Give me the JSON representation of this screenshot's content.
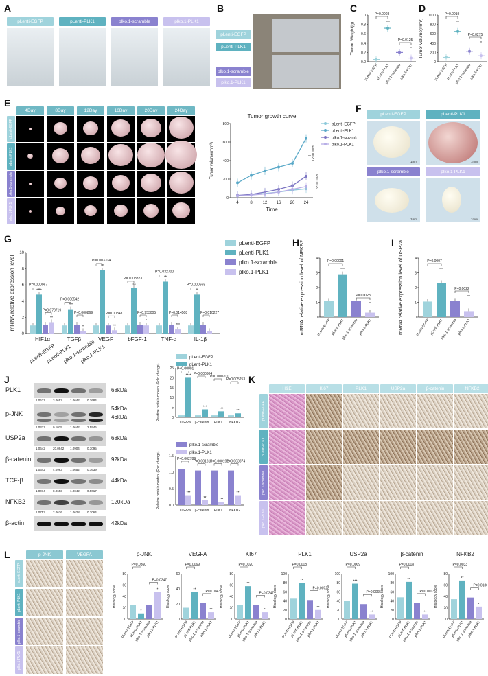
{
  "panels": {
    "A": "A",
    "B": "B",
    "C": "C",
    "D": "D",
    "E": "E",
    "F": "F",
    "G": "G",
    "H": "H",
    "I": "I",
    "J": "J",
    "K": "K",
    "L": "L"
  },
  "groups": {
    "egfp": "pLenti-EGFP",
    "plk1": "pLenti-PLK1",
    "scr": "plko.1-scramble",
    "plko": "plko.1-PLK1"
  },
  "e_days": [
    "4Day",
    "8Day",
    "12Day",
    "16Day",
    "20Day",
    "24Day"
  ],
  "f_scalebar": "1mm",
  "k_headers": [
    "H&E",
    "Ki67",
    "PLK1",
    "USP2a",
    "β-catenin",
    "NFKB2"
  ],
  "l_headers": [
    "p-JNK",
    "VEGFA"
  ],
  "j_proteins": [
    {
      "name": "PLK1",
      "kda": "68kDa",
      "quant": [
        "1.0637",
        "3.0652",
        "1.0642",
        "0.1684"
      ]
    },
    {
      "name": "p-JNK",
      "kda": "54kDa|46kDa",
      "quant": [
        "1.0317",
        "0.1025",
        "1.0642",
        "2.5946"
      ]
    },
    {
      "name": "USP2a",
      "kda": "68kDa",
      "quant": [
        "1.0642",
        "20.0942",
        "1.0904",
        "0.3095"
      ]
    },
    {
      "name": "β-catenin",
      "kda": "92kDa",
      "quant": [
        "1.0642",
        "4.0963",
        "1.0652",
        "0.1639"
      ]
    },
    {
      "name": "TCF-β",
      "kda": "44kDa",
      "quant": [
        "1.0074",
        "8.0653",
        "1.0042",
        "0.5017"
      ]
    },
    {
      "name": "NFKB2",
      "kda": "120kDa",
      "quant": [
        "1.0752",
        "2.0616",
        "1.0628",
        "0.3064"
      ]
    },
    {
      "name": "β-actin",
      "kda": "42kDa",
      "quant": []
    }
  ],
  "colors": {
    "egfp": "#9fd3dc",
    "plk1": "#5fb2c0",
    "scr": "#8a82cf",
    "plko": "#c8c1ee",
    "line_egfp": "#8cc9da",
    "line_plk1": "#5aa9c8",
    "line_scr": "#7b74c2",
    "line_plko": "#b7aee6"
  },
  "chart_data": [
    {
      "panel": "C",
      "type": "scatter",
      "ylabel": "Tumor Weight(g)",
      "ylim": [
        0,
        1.0
      ],
      "yticks": [
        "0.0",
        "0.2",
        "0.4",
        "0.6",
        "0.8",
        "1.0"
      ],
      "categories": [
        "pLenti-EGFP",
        "pLenti-PLK1",
        "plko.1-scramble",
        "plko.1-PLK1"
      ],
      "values": [
        0.05,
        0.72,
        0.2,
        0.08
      ],
      "annotations": [
        "P=0.0003",
        "P=0.0125",
        "***",
        "*"
      ]
    },
    {
      "panel": "D",
      "type": "scatter",
      "ylabel": "Tumor volume(mm³)",
      "ylim": [
        0,
        1000
      ],
      "yticks": [
        "0",
        "200",
        "400",
        "600",
        "800",
        "1000"
      ],
      "categories": [
        "pLenti-EGFP",
        "pLenti-PLK1",
        "plko.1-scramble",
        "plko.1-PLK1"
      ],
      "values": [
        95,
        650,
        225,
        130
      ],
      "annotations": [
        "P=0.0019",
        "P=0.0275",
        "**",
        "*"
      ]
    },
    {
      "panel": "E",
      "type": "line",
      "title": "Tumor growth curve",
      "xlabel": "Time",
      "ylabel": "Tumor volume(mm³)",
      "x": [
        4,
        8,
        12,
        16,
        20,
        24
      ],
      "ylim": [
        0,
        800
      ],
      "yticks": [
        "0",
        "200",
        "400",
        "600",
        "800"
      ],
      "series": [
        {
          "name": "pLenti-EGFP",
          "values": [
            20,
            30,
            45,
            60,
            80,
            95
          ]
        },
        {
          "name": "pLenti-PLK1",
          "values": [
            160,
            240,
            290,
            330,
            370,
            640
          ]
        },
        {
          "name": "plko.1-scramble",
          "values": [
            25,
            35,
            60,
            90,
            130,
            230
          ]
        },
        {
          "name": "plko.1-PLK1",
          "values": [
            20,
            28,
            40,
            60,
            90,
            120
          ]
        }
      ],
      "annotations": [
        "P=0.0020",
        "P=0.0029",
        "**"
      ]
    },
    {
      "panel": "G",
      "type": "bar",
      "ylabel": "mRNA relative expression level",
      "ylim": [
        0,
        10
      ],
      "yticks": [
        "0",
        "2",
        "4",
        "6",
        "8",
        "10"
      ],
      "categories": [
        "HIF1α",
        "TGFβ",
        "VEGF",
        "bFGF-1",
        "TNF-α",
        "IL-1β"
      ],
      "series": [
        {
          "name": "pLenti-EGFP",
          "values": [
            1.0,
            1.0,
            1.0,
            1.0,
            1.0,
            1.0
          ]
        },
        {
          "name": "pLenti-PLK1",
          "values": [
            4.8,
            3.0,
            7.8,
            5.6,
            6.4,
            4.8
          ]
        },
        {
          "name": "plko.1-scramble",
          "values": [
            1.1,
            1.1,
            1.0,
            1.1,
            1.1,
            1.1
          ]
        },
        {
          "name": "plko.1-PLK1",
          "values": [
            1.4,
            0.3,
            0.4,
            1.0,
            0.5,
            0.3
          ]
        }
      ],
      "annotations": [
        "P=0.000067",
        "P=0.073719",
        "P=0.006542",
        "P=0.000869",
        "P=0.003704",
        "P=0.00848",
        "P=0.008323",
        "P=0.953005",
        "P=0.032700",
        "P=0.014508",
        "P=0.000665",
        "P=0.010227",
        "****",
        "**",
        "***",
        "**",
        "**",
        "**",
        "ns",
        "*",
        "**",
        "***",
        "*"
      ]
    },
    {
      "panel": "H",
      "type": "bar",
      "ylabel": "mRNA relative expression level of NFKB2",
      "ylim": [
        0,
        4
      ],
      "yticks": [
        "0",
        "1",
        "2",
        "3",
        "4"
      ],
      "categories": [
        "pLenti-EGFP",
        "pLenti-PLK1",
        "plko.1-scramble",
        "plko.1-PLK1"
      ],
      "values": [
        1.1,
        2.9,
        1.1,
        0.3
      ],
      "annotations": [
        "P=0.00001",
        "P=0.0028",
        "***",
        "**"
      ]
    },
    {
      "panel": "I",
      "type": "bar",
      "ylabel": "mRNA relative expression level of USP2a",
      "ylim": [
        0,
        4
      ],
      "yticks": [
        "0",
        "1",
        "2",
        "3",
        "4"
      ],
      "categories": [
        "pLenti-EGFP",
        "pLenti-PLK1",
        "plko.1-scramble",
        "plko.1-PLK1"
      ],
      "values": [
        1.05,
        2.3,
        1.1,
        0.4
      ],
      "annotations": [
        "P=0.0007",
        "P=0.0022",
        "***",
        "**"
      ]
    },
    {
      "panel": "J1",
      "type": "bar",
      "ylabel": "Relative protein content (Fold change)",
      "ylim": [
        0,
        25
      ],
      "yticks": [
        "0",
        "5",
        "10",
        "15",
        "20",
        "25"
      ],
      "categories": [
        "USP2a",
        "β-catenin",
        "PLK1",
        "NFKB2"
      ],
      "series": [
        {
          "name": "pLenti-EGFP",
          "values": [
            1.0,
            1.0,
            1.0,
            1.0
          ]
        },
        {
          "name": "pLenti-PLK1",
          "values": [
            20.0,
            4.0,
            3.0,
            2.0
          ]
        }
      ],
      "annotations": [
        "P<0.00001",
        "P=0.000304",
        "P=0.000201",
        "P=0.005253",
        "****",
        "***",
        "***",
        "**"
      ]
    },
    {
      "panel": "J2",
      "type": "bar",
      "ylabel": "Relative protein content (Fold change)",
      "ylim": [
        0,
        1.5
      ],
      "yticks": [
        "0.0",
        "0.5",
        "1.0",
        "1.5"
      ],
      "categories": [
        "USP2a",
        "β-catenin",
        "PLK1",
        "NFKB2"
      ],
      "series": [
        {
          "name": "plko.1-scramble",
          "values": [
            1.1,
            1.05,
            1.05,
            1.05
          ]
        },
        {
          "name": "plko.1-PLK1",
          "values": [
            0.3,
            0.15,
            0.1,
            0.3
          ]
        }
      ],
      "annotations": [
        "P=0.002789",
        "P=0.001815",
        "P=0.000191",
        "P=0.003874",
        "***",
        "**",
        "***",
        "**"
      ]
    },
    {
      "panel": "L",
      "type": "bar",
      "ylabel": "Histology score",
      "yticks": [
        "0",
        "20",
        "40",
        "60",
        "80"
      ],
      "categories": [
        "pLenti-EGFP",
        "pLenti-PLK1",
        "plko.1-scramble",
        "plko.1-PLK1"
      ],
      "subcharts": [
        {
          "title": "p-JNK",
          "ylim": [
            0,
            80
          ],
          "values": [
            25,
            10,
            25,
            48
          ],
          "annotations": [
            "P=0.0360",
            "P=0.0247",
            "*",
            "*"
          ]
        },
        {
          "title": "VEGFA",
          "ylim": [
            0,
            60
          ],
          "values": [
            15,
            36,
            21,
            9
          ],
          "annotations": [
            "P=0.0069",
            "P=0.0043",
            "**",
            "**"
          ]
        },
        {
          "title": "KI67",
          "ylim": [
            0,
            80
          ],
          "values": [
            25,
            58,
            25,
            12
          ],
          "annotations": [
            "P=0.0020",
            "P=0.0247",
            "**",
            "*"
          ]
        },
        {
          "title": "PLK1",
          "ylim": [
            0,
            100
          ],
          "values": [
            45,
            80,
            42,
            20
          ],
          "annotations": [
            "P=0.0018",
            "P=0.0072",
            "**",
            "**"
          ]
        },
        {
          "title": "USP2a",
          "ylim": [
            0,
            100
          ],
          "values": [
            40,
            78,
            33,
            10
          ],
          "annotations": [
            "P=0.0009",
            "P=0.0065",
            "***",
            "**"
          ]
        },
        {
          "title": "β-catenin",
          "ylim": [
            0,
            100
          ],
          "values": [
            48,
            82,
            35,
            10
          ],
          "annotations": [
            "P=0.0018",
            "P=0.0013",
            "**",
            "**"
          ]
        },
        {
          "title": "NFKB2",
          "ylim": [
            0,
            80
          ],
          "values": [
            35,
            68,
            38,
            22
          ],
          "annotations": [
            "P=0.0033",
            "P=0.0180",
            "**",
            "*"
          ]
        }
      ]
    }
  ]
}
